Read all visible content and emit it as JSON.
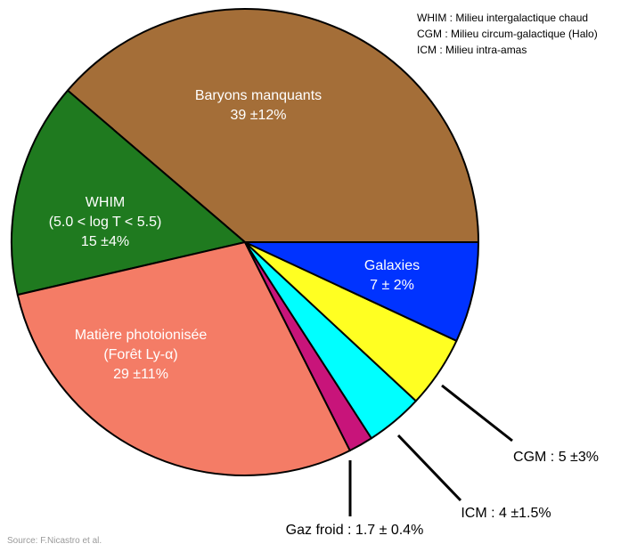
{
  "legend": {
    "lines": [
      "WHIM : Milieu intergalactique chaud",
      "CGM : Milieu circum-galactique (Halo)",
      "ICM : Milieu intra-amas"
    ]
  },
  "source": "Source: F.Nicastro et al.",
  "chart_data": {
    "type": "pie",
    "title": "",
    "start": "3 o'clock, counter-clockwise",
    "slices": [
      {
        "key": "baryons",
        "value": 39,
        "color": "#a46e38",
        "label_lines": [
          "Baryons manquants",
          "39 ±12%"
        ],
        "label_placement": "inside"
      },
      {
        "key": "whim",
        "value": 15,
        "color": "#1f7a1f",
        "label_lines": [
          "WHIM",
          "(5.0 < log T < 5.5)",
          "15 ±4%"
        ],
        "label_placement": "inside"
      },
      {
        "key": "matiere",
        "value": 29,
        "color": "#f47c66",
        "label_lines": [
          "Matière photoionisée",
          "(Forêt Ly-α)",
          "29 ±11%"
        ],
        "label_placement": "inside"
      },
      {
        "key": "gaz",
        "value": 1.7,
        "color": "#c8147a",
        "label_lines": [
          "Gaz froid : 1.7 ± 0.4%"
        ],
        "label_placement": "outside"
      },
      {
        "key": "icm",
        "value": 4,
        "color": "#00ffff",
        "label_lines": [
          "ICM : 4 ±1.5%"
        ],
        "label_placement": "outside"
      },
      {
        "key": "cgm",
        "value": 5,
        "color": "#ffff22",
        "label_lines": [
          "CGM : 5 ±3%"
        ],
        "label_placement": "outside"
      },
      {
        "key": "galaxies",
        "value": 7,
        "color": "#0033ff",
        "label_lines": [
          "Galaxies",
          "7 ± 2%"
        ],
        "label_placement": "inside"
      }
    ]
  }
}
